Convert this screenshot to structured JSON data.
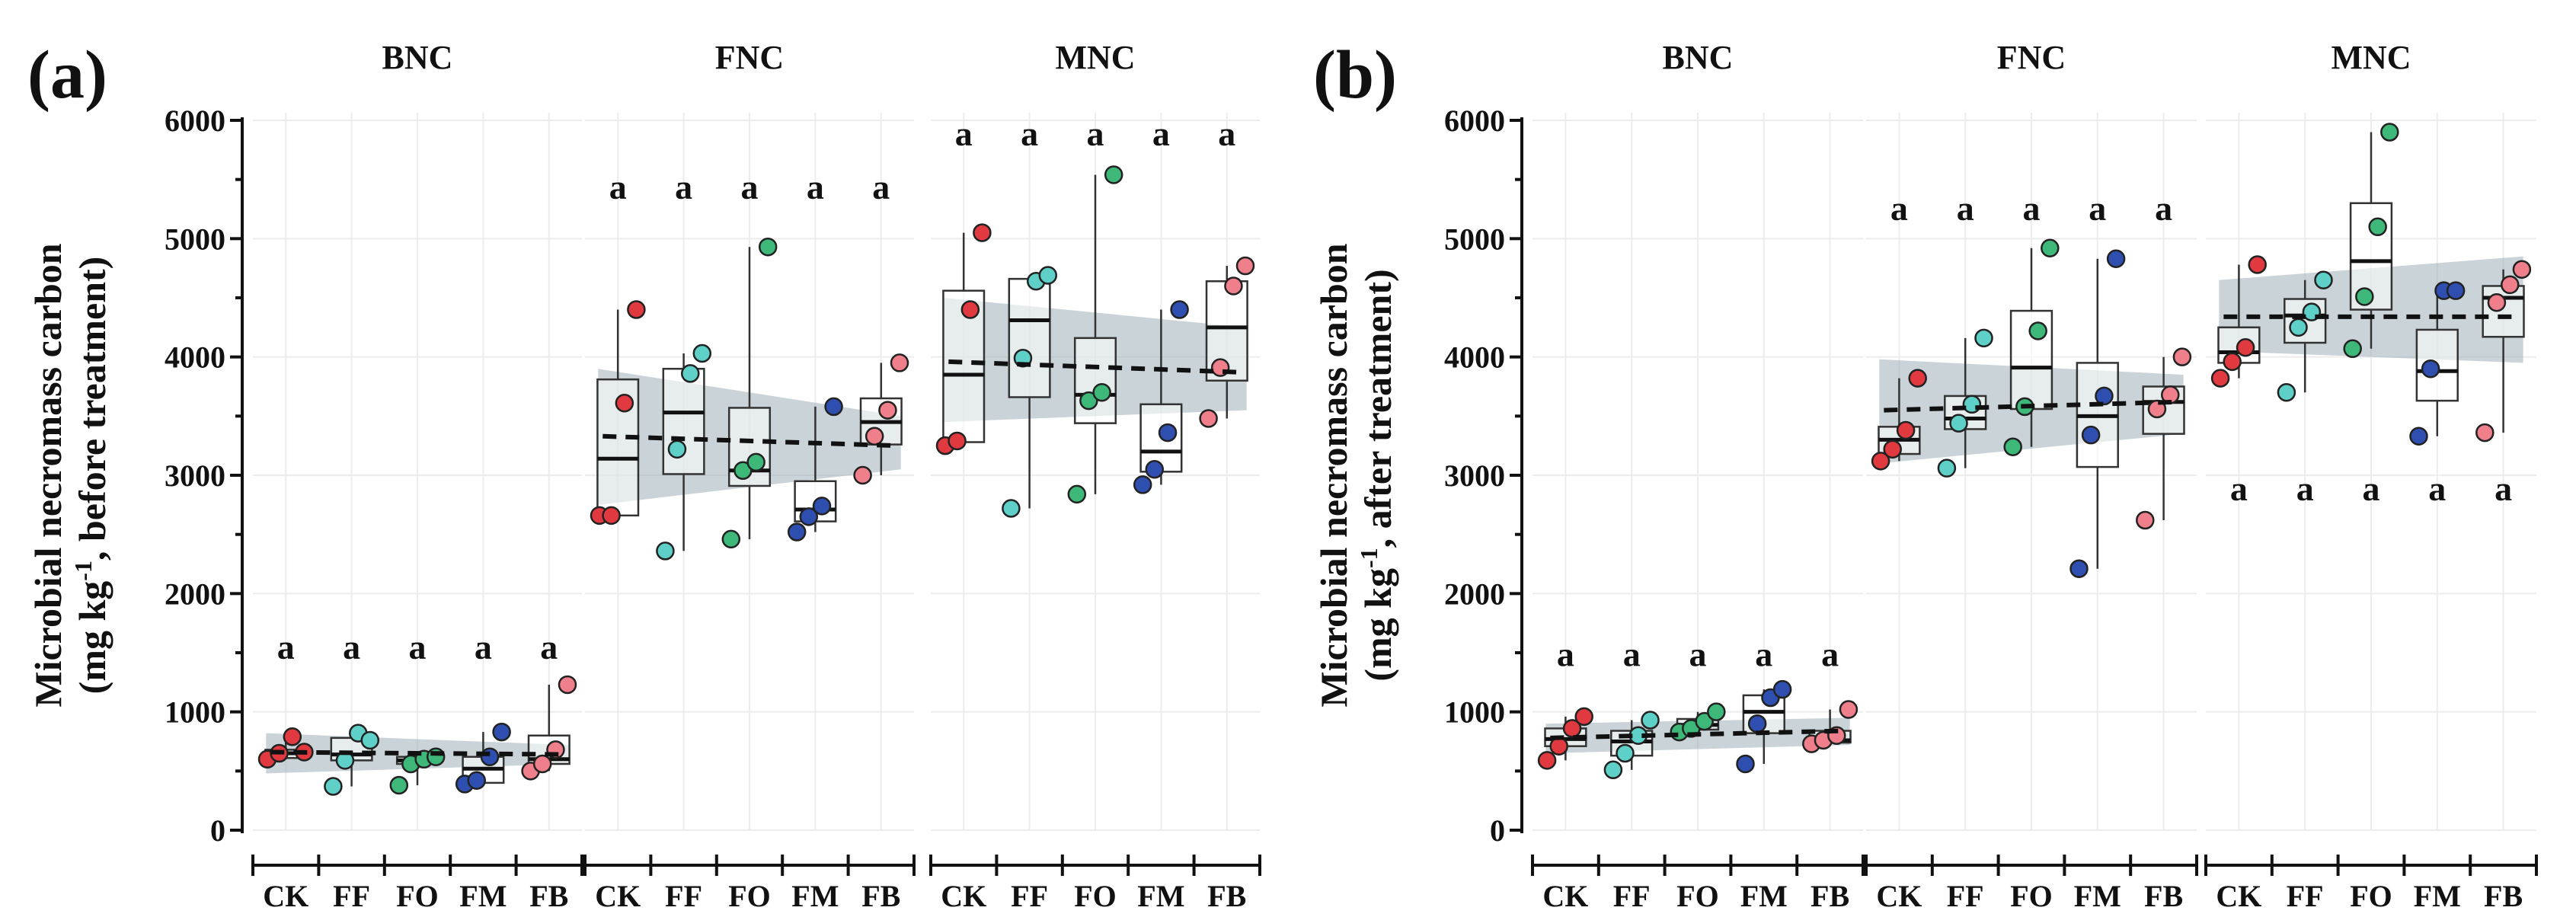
{
  "colors": {
    "CK": "#e0393f",
    "FF": "#5fd0c8",
    "FO": "#3db878",
    "FM": "#2f4fb0",
    "FB": "#ef7f8a",
    "band": "#9fb1b8"
  },
  "chart_data": [
    {
      "type": "box",
      "panel": "(a)",
      "ylabel_line1": "Microbial necromass carbon",
      "ylabel_line2_pre": "(mg kg",
      "ylabel_line2_sup": "-1",
      "ylabel_line2_post": ", before treatment)",
      "ylim": [
        0,
        6000
      ],
      "yticks": [
        "0",
        "1000",
        "2000",
        "3000",
        "4000",
        "5000",
        "6000"
      ],
      "categories": [
        "CK",
        "FF",
        "FO",
        "FM",
        "FB"
      ],
      "facets": [
        {
          "name": "BNC",
          "letter_y": 1550,
          "trend": [
            660,
            640
          ],
          "band": [
            [
              480,
              820
            ],
            [
              560,
              720
            ]
          ],
          "groups": [
            {
              "q1": 610,
              "median": 650,
              "q3": 680,
              "min": 600,
              "max": 790,
              "letter": "a",
              "points": [
                600,
                650,
                790,
                660
              ]
            },
            {
              "q1": 590,
              "median": 640,
              "q3": 780,
              "min": 370,
              "max": 820,
              "letter": "a",
              "points": [
                370,
                590,
                820,
                760
              ]
            },
            {
              "q1": 560,
              "median": 590,
              "q3": 620,
              "min": 380,
              "max": 620,
              "letter": "a",
              "points": [
                380,
                560,
                600,
                620
              ]
            },
            {
              "q1": 400,
              "median": 520,
              "q3": 620,
              "min": 390,
              "max": 830,
              "letter": "a",
              "points": [
                390,
                420,
                620,
                830
              ]
            },
            {
              "q1": 560,
              "median": 600,
              "q3": 800,
              "min": 500,
              "max": 1230,
              "letter": "a",
              "points": [
                500,
                560,
                680,
                1230
              ]
            }
          ]
        },
        {
          "name": "FNC",
          "letter_y": 5440,
          "trend": [
            3330,
            3250
          ],
          "band": [
            [
              2750,
              3900
            ],
            [
              3050,
              3500
            ]
          ],
          "groups": [
            {
              "q1": 2660,
              "median": 3140,
              "q3": 3810,
              "min": 2660,
              "max": 4400,
              "letter": "a",
              "points": [
                2660,
                2660,
                3610,
                4400
              ]
            },
            {
              "q1": 3010,
              "median": 3530,
              "q3": 3900,
              "min": 2360,
              "max": 4030,
              "letter": "a",
              "points": [
                2360,
                3220,
                3860,
                4030
              ]
            },
            {
              "q1": 2910,
              "median": 3040,
              "q3": 3570,
              "min": 2460,
              "max": 4930,
              "letter": "a",
              "points": [
                2460,
                3040,
                3110,
                4930
              ]
            },
            {
              "q1": 2610,
              "median": 2710,
              "q3": 2950,
              "min": 2520,
              "max": 3580,
              "letter": "a",
              "points": [
                2520,
                2650,
                2740,
                3580
              ]
            },
            {
              "q1": 3260,
              "median": 3450,
              "q3": 3650,
              "min": 3000,
              "max": 3950,
              "letter": "a",
              "points": [
                3000,
                3330,
                3550,
                3950
              ]
            }
          ]
        },
        {
          "name": "MNC",
          "letter_y": 5890,
          "trend": [
            3960,
            3870
          ],
          "band": [
            [
              3450,
              4500
            ],
            [
              3550,
              4250
            ]
          ],
          "groups": [
            {
              "q1": 3280,
              "median": 3850,
              "q3": 4560,
              "min": 3250,
              "max": 5050,
              "letter": "a",
              "points": [
                3250,
                3290,
                4400,
                5050
              ]
            },
            {
              "q1": 3660,
              "median": 4310,
              "q3": 4660,
              "min": 2720,
              "max": 4690,
              "letter": "a",
              "points": [
                2720,
                3990,
                4640,
                4690
              ]
            },
            {
              "q1": 3440,
              "median": 3680,
              "q3": 4160,
              "min": 2840,
              "max": 5540,
              "letter": "a",
              "points": [
                2840,
                3630,
                3700,
                5540
              ]
            },
            {
              "q1": 3030,
              "median": 3200,
              "q3": 3600,
              "min": 2920,
              "max": 4400,
              "letter": "a",
              "points": [
                2920,
                3050,
                3360,
                4400
              ]
            },
            {
              "q1": 3800,
              "median": 4250,
              "q3": 4640,
              "min": 3480,
              "max": 4770,
              "letter": "a",
              "points": [
                3480,
                3910,
                4600,
                4770
              ]
            }
          ]
        }
      ]
    },
    {
      "type": "box",
      "panel": "(b)",
      "ylabel_line1": "Microbial necromass carbon",
      "ylabel_line2_pre": "(mg kg",
      "ylabel_line2_sup": "-1",
      "ylabel_line2_post": ", after treatment)",
      "ylim": [
        0,
        6000
      ],
      "yticks": [
        "0",
        "1000",
        "2000",
        "3000",
        "4000",
        "5000",
        "6000"
      ],
      "categories": [
        "CK",
        "FF",
        "FO",
        "FM",
        "FB"
      ],
      "facets": [
        {
          "name": "BNC",
          "letter_y": 1490,
          "trend": [
            780,
            840
          ],
          "band": [
            [
              650,
              900
            ],
            [
              720,
              950
            ]
          ],
          "groups": [
            {
              "q1": 710,
              "median": 770,
              "q3": 860,
              "min": 590,
              "max": 960,
              "letter": "a",
              "points": [
                590,
                710,
                860,
                960
              ]
            },
            {
              "q1": 630,
              "median": 750,
              "q3": 840,
              "min": 510,
              "max": 930,
              "letter": "a",
              "points": [
                510,
                650,
                800,
                930
              ]
            },
            {
              "q1": 850,
              "median": 890,
              "q3": 940,
              "min": 830,
              "max": 1000,
              "letter": "a",
              "points": [
                830,
                860,
                920,
                1000
              ]
            },
            {
              "q1": 820,
              "median": 1000,
              "q3": 1140,
              "min": 560,
              "max": 1190,
              "letter": "a",
              "points": [
                560,
                900,
                1120,
                1190
              ]
            },
            {
              "q1": 740,
              "median": 760,
              "q3": 840,
              "min": 730,
              "max": 1020,
              "letter": "a",
              "points": [
                730,
                760,
                800,
                1020
              ]
            }
          ]
        },
        {
          "name": "FNC",
          "letter_y": 5260,
          "trend": [
            3550,
            3620
          ],
          "band": [
            [
              3100,
              3980
            ],
            [
              3350,
              3850
            ]
          ],
          "groups": [
            {
              "q1": 3180,
              "median": 3300,
              "q3": 3410,
              "min": 3120,
              "max": 3820,
              "letter": "a",
              "points": [
                3120,
                3220,
                3380,
                3820
              ]
            },
            {
              "q1": 3390,
              "median": 3480,
              "q3": 3670,
              "min": 3060,
              "max": 4160,
              "letter": "a",
              "points": [
                3060,
                3440,
                3600,
                4160
              ]
            },
            {
              "q1": 3560,
              "median": 3910,
              "q3": 4390,
              "min": 3240,
              "max": 4920,
              "letter": "a",
              "points": [
                3240,
                3580,
                4220,
                4920
              ]
            },
            {
              "q1": 3070,
              "median": 3500,
              "q3": 3950,
              "min": 2210,
              "max": 4830,
              "letter": "a",
              "points": [
                2210,
                3340,
                3670,
                4830
              ]
            },
            {
              "q1": 3350,
              "median": 3620,
              "q3": 3750,
              "min": 2620,
              "max": 4000,
              "letter": "a",
              "points": [
                2620,
                3560,
                3680,
                4000
              ]
            }
          ]
        },
        {
          "name": "MNC",
          "letter_y": 2890,
          "trend": [
            4340,
            4340
          ],
          "band": [
            [
              4050,
              4650
            ],
            [
              3950,
              4850
            ]
          ],
          "groups": [
            {
              "q1": 3950,
              "median": 4040,
              "q3": 4250,
              "min": 3820,
              "max": 4780,
              "letter": "a",
              "points": [
                3820,
                3960,
                4080,
                4780
              ]
            },
            {
              "q1": 4120,
              "median": 4350,
              "q3": 4490,
              "min": 3700,
              "max": 4650,
              "letter": "a",
              "points": [
                3700,
                4250,
                4380,
                4650
              ]
            },
            {
              "q1": 4400,
              "median": 4810,
              "q3": 5300,
              "min": 4070,
              "max": 5900,
              "letter": "a",
              "points": [
                4070,
                4510,
                5100,
                5900
              ]
            },
            {
              "q1": 3630,
              "median": 3880,
              "q3": 4230,
              "min": 3330,
              "max": 4560,
              "letter": "a",
              "points": [
                3330,
                3900,
                4560,
                4560
              ]
            },
            {
              "q1": 4170,
              "median": 4500,
              "q3": 4600,
              "min": 3360,
              "max": 4740,
              "letter": "a",
              "points": [
                3360,
                4460,
                4610,
                4740
              ]
            }
          ]
        }
      ]
    }
  ]
}
